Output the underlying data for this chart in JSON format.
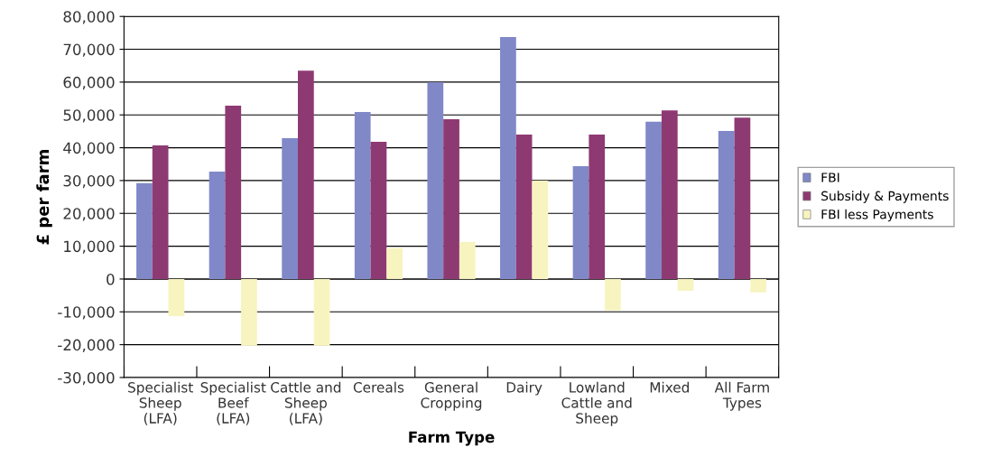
{
  "chart_data": {
    "type": "bar",
    "xlabel": "Farm Type",
    "ylabel": "£ per farm",
    "categories": [
      "Specialist\nSheep\n(LFA)",
      "Specialist\nBeef\n(LFA)",
      "Cattle and\nSheep\n(LFA)",
      "Cereals",
      "General\nCropping",
      "Dairy",
      "Lowland\nCattle and\nSheep",
      "Mixed",
      "All Farm\nTypes"
    ],
    "series": [
      {
        "name": "FBI",
        "color": "#8088c8",
        "values": [
          29200,
          32700,
          42900,
          50900,
          60000,
          73700,
          34400,
          47900,
          45100
        ]
      },
      {
        "name": "Subsidy & Payments",
        "color": "#8e3a72",
        "values": [
          40700,
          52800,
          63500,
          41800,
          48700,
          44000,
          44000,
          51400,
          49200
        ]
      },
      {
        "name": "FBI less Payments",
        "color": "#f8f4c0",
        "values": [
          -11300,
          -20300,
          -20300,
          9400,
          11300,
          30000,
          -9600,
          -3600,
          -4100
        ]
      }
    ],
    "ylim": [
      -30000,
      80000
    ],
    "yticks": [
      {
        "value": -30000,
        "label": "-30,000"
      },
      {
        "value": -20000,
        "label": "-20,000"
      },
      {
        "value": -10000,
        "label": "-10,000"
      },
      0,
      {
        "value": 10000,
        "label": "10,000"
      },
      {
        "value": 20000,
        "label": "20,000"
      },
      {
        "value": 30000,
        "label": "30,000"
      },
      {
        "value": 40000,
        "label": "40,000"
      },
      {
        "value": 50000,
        "label": "50,000"
      },
      {
        "value": 60000,
        "label": "60,000"
      },
      {
        "value": 70000,
        "label": "70,000"
      },
      {
        "value": 80000,
        "label": "80,000"
      }
    ],
    "grid": "y",
    "legend": "right"
  }
}
